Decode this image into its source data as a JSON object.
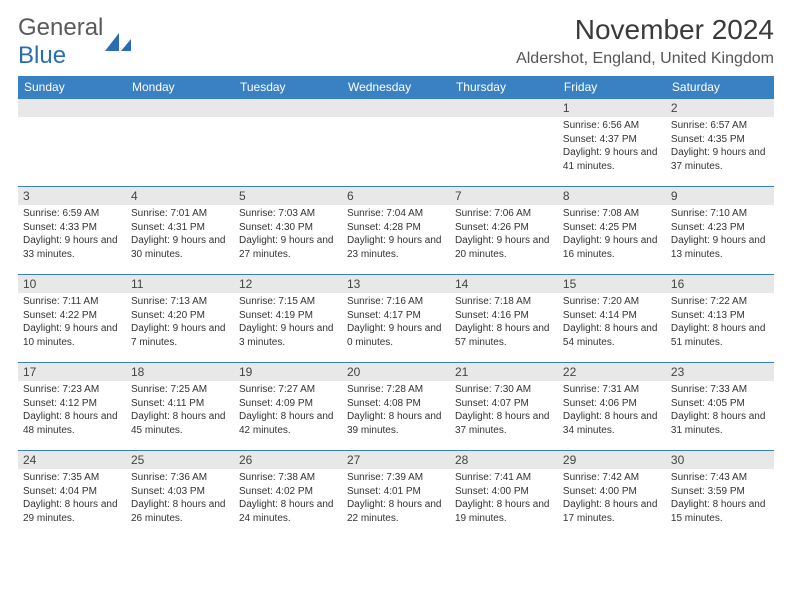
{
  "logo": {
    "textA": "General",
    "textB": "Blue"
  },
  "title": "November 2024",
  "location": "Aldershot, England, United Kingdom",
  "colors": {
    "header_bg": "#3a81c4",
    "header_text": "#ffffff",
    "daynum_bg": "#e8e8e8",
    "cell_border": "#3a81c4",
    "logo_gray": "#5a5a5a",
    "logo_blue": "#2a6db3"
  },
  "weekdays": [
    "Sunday",
    "Monday",
    "Tuesday",
    "Wednesday",
    "Thursday",
    "Friday",
    "Saturday"
  ],
  "weeks": [
    [
      null,
      null,
      null,
      null,
      null,
      {
        "n": "1",
        "sr": "Sunrise: 6:56 AM",
        "ss": "Sunset: 4:37 PM",
        "dl": "Daylight: 9 hours and 41 minutes."
      },
      {
        "n": "2",
        "sr": "Sunrise: 6:57 AM",
        "ss": "Sunset: 4:35 PM",
        "dl": "Daylight: 9 hours and 37 minutes."
      }
    ],
    [
      {
        "n": "3",
        "sr": "Sunrise: 6:59 AM",
        "ss": "Sunset: 4:33 PM",
        "dl": "Daylight: 9 hours and 33 minutes."
      },
      {
        "n": "4",
        "sr": "Sunrise: 7:01 AM",
        "ss": "Sunset: 4:31 PM",
        "dl": "Daylight: 9 hours and 30 minutes."
      },
      {
        "n": "5",
        "sr": "Sunrise: 7:03 AM",
        "ss": "Sunset: 4:30 PM",
        "dl": "Daylight: 9 hours and 27 minutes."
      },
      {
        "n": "6",
        "sr": "Sunrise: 7:04 AM",
        "ss": "Sunset: 4:28 PM",
        "dl": "Daylight: 9 hours and 23 minutes."
      },
      {
        "n": "7",
        "sr": "Sunrise: 7:06 AM",
        "ss": "Sunset: 4:26 PM",
        "dl": "Daylight: 9 hours and 20 minutes."
      },
      {
        "n": "8",
        "sr": "Sunrise: 7:08 AM",
        "ss": "Sunset: 4:25 PM",
        "dl": "Daylight: 9 hours and 16 minutes."
      },
      {
        "n": "9",
        "sr": "Sunrise: 7:10 AM",
        "ss": "Sunset: 4:23 PM",
        "dl": "Daylight: 9 hours and 13 minutes."
      }
    ],
    [
      {
        "n": "10",
        "sr": "Sunrise: 7:11 AM",
        "ss": "Sunset: 4:22 PM",
        "dl": "Daylight: 9 hours and 10 minutes."
      },
      {
        "n": "11",
        "sr": "Sunrise: 7:13 AM",
        "ss": "Sunset: 4:20 PM",
        "dl": "Daylight: 9 hours and 7 minutes."
      },
      {
        "n": "12",
        "sr": "Sunrise: 7:15 AM",
        "ss": "Sunset: 4:19 PM",
        "dl": "Daylight: 9 hours and 3 minutes."
      },
      {
        "n": "13",
        "sr": "Sunrise: 7:16 AM",
        "ss": "Sunset: 4:17 PM",
        "dl": "Daylight: 9 hours and 0 minutes."
      },
      {
        "n": "14",
        "sr": "Sunrise: 7:18 AM",
        "ss": "Sunset: 4:16 PM",
        "dl": "Daylight: 8 hours and 57 minutes."
      },
      {
        "n": "15",
        "sr": "Sunrise: 7:20 AM",
        "ss": "Sunset: 4:14 PM",
        "dl": "Daylight: 8 hours and 54 minutes."
      },
      {
        "n": "16",
        "sr": "Sunrise: 7:22 AM",
        "ss": "Sunset: 4:13 PM",
        "dl": "Daylight: 8 hours and 51 minutes."
      }
    ],
    [
      {
        "n": "17",
        "sr": "Sunrise: 7:23 AM",
        "ss": "Sunset: 4:12 PM",
        "dl": "Daylight: 8 hours and 48 minutes."
      },
      {
        "n": "18",
        "sr": "Sunrise: 7:25 AM",
        "ss": "Sunset: 4:11 PM",
        "dl": "Daylight: 8 hours and 45 minutes."
      },
      {
        "n": "19",
        "sr": "Sunrise: 7:27 AM",
        "ss": "Sunset: 4:09 PM",
        "dl": "Daylight: 8 hours and 42 minutes."
      },
      {
        "n": "20",
        "sr": "Sunrise: 7:28 AM",
        "ss": "Sunset: 4:08 PM",
        "dl": "Daylight: 8 hours and 39 minutes."
      },
      {
        "n": "21",
        "sr": "Sunrise: 7:30 AM",
        "ss": "Sunset: 4:07 PM",
        "dl": "Daylight: 8 hours and 37 minutes."
      },
      {
        "n": "22",
        "sr": "Sunrise: 7:31 AM",
        "ss": "Sunset: 4:06 PM",
        "dl": "Daylight: 8 hours and 34 minutes."
      },
      {
        "n": "23",
        "sr": "Sunrise: 7:33 AM",
        "ss": "Sunset: 4:05 PM",
        "dl": "Daylight: 8 hours and 31 minutes."
      }
    ],
    [
      {
        "n": "24",
        "sr": "Sunrise: 7:35 AM",
        "ss": "Sunset: 4:04 PM",
        "dl": "Daylight: 8 hours and 29 minutes."
      },
      {
        "n": "25",
        "sr": "Sunrise: 7:36 AM",
        "ss": "Sunset: 4:03 PM",
        "dl": "Daylight: 8 hours and 26 minutes."
      },
      {
        "n": "26",
        "sr": "Sunrise: 7:38 AM",
        "ss": "Sunset: 4:02 PM",
        "dl": "Daylight: 8 hours and 24 minutes."
      },
      {
        "n": "27",
        "sr": "Sunrise: 7:39 AM",
        "ss": "Sunset: 4:01 PM",
        "dl": "Daylight: 8 hours and 22 minutes."
      },
      {
        "n": "28",
        "sr": "Sunrise: 7:41 AM",
        "ss": "Sunset: 4:00 PM",
        "dl": "Daylight: 8 hours and 19 minutes."
      },
      {
        "n": "29",
        "sr": "Sunrise: 7:42 AM",
        "ss": "Sunset: 4:00 PM",
        "dl": "Daylight: 8 hours and 17 minutes."
      },
      {
        "n": "30",
        "sr": "Sunrise: 7:43 AM",
        "ss": "Sunset: 3:59 PM",
        "dl": "Daylight: 8 hours and 15 minutes."
      }
    ]
  ]
}
